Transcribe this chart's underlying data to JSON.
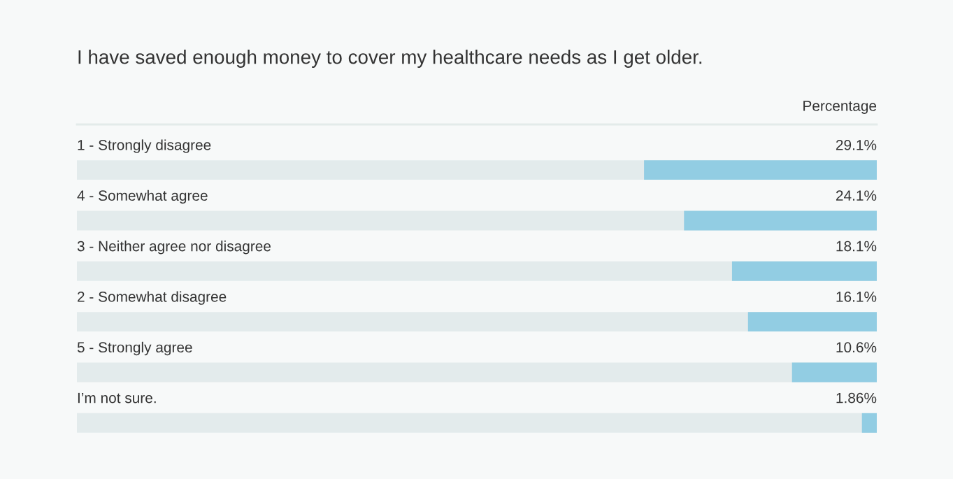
{
  "chart_data": {
    "type": "bar",
    "orientation": "horizontal",
    "title": "I have saved enough money to cover my healthcare needs as I get older.",
    "xlabel": "Percentage",
    "categories": [
      "1 - Strongly disagree",
      "4 - Somewhat agree",
      "3 - Neither agree nor disagree",
      "2 - Somewhat disagree",
      "5 - Strongly agree",
      "I’m not sure."
    ],
    "values": [
      29.1,
      24.1,
      18.1,
      16.1,
      10.6,
      1.86
    ],
    "value_labels": [
      "29.1%",
      "24.1%",
      "18.1%",
      "16.1%",
      "10.6%",
      "1.86%"
    ],
    "color": "#92cde3",
    "xlim": [
      100,
      0
    ]
  }
}
